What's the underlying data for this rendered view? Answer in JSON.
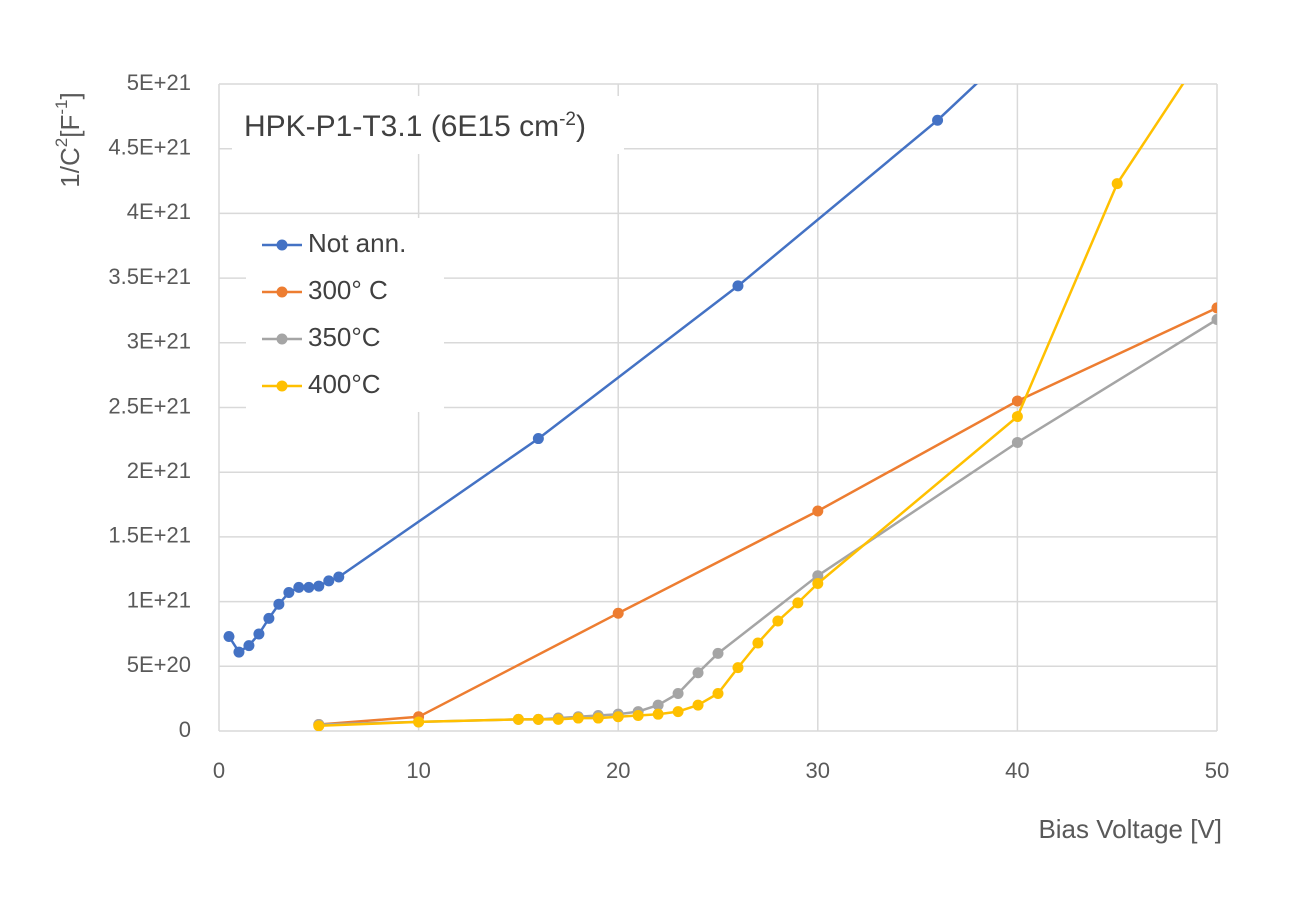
{
  "chart_data": {
    "type": "line",
    "title": {
      "main": "HPK-P1-T3.1 (6E15 cm",
      "sup": "-2",
      "tail": ")"
    },
    "xlabel": "Bias Voltage [V]",
    "ylabel": {
      "a": "1/C",
      "sup1": "2",
      "b": "[F",
      "sup2": "-1",
      "c": "]"
    },
    "xlim": [
      0,
      50
    ],
    "ylim": [
      0,
      5e+21
    ],
    "x_ticks": [
      0,
      10,
      20,
      30,
      40,
      50
    ],
    "x_tick_labels": [
      "0",
      "10",
      "20",
      "30",
      "40",
      "50"
    ],
    "y_ticks": [
      0,
      5e+20,
      1e+21,
      1.5e+21,
      2e+21,
      2.5e+21,
      3e+21,
      3.5e+21,
      4e+21,
      4.5e+21,
      5e+21
    ],
    "y_tick_labels": [
      "0",
      "5E+20",
      "1E+21",
      "1.5E+21",
      "2E+21",
      "2.5E+21",
      "3E+21",
      "3.5E+21",
      "4E+21",
      "4.5E+21",
      "5E+21"
    ],
    "grid": true,
    "legend_position": "left",
    "series": [
      {
        "name": "Not ann.",
        "color": "#4472c4",
        "points": [
          [
            0.5,
            7.3e+20
          ],
          [
            1,
            6.1e+20
          ],
          [
            1.5,
            6.6e+20
          ],
          [
            2,
            7.5e+20
          ],
          [
            2.5,
            8.7e+20
          ],
          [
            3,
            9.8e+20
          ],
          [
            3.5,
            1.07e+21
          ],
          [
            4,
            1.11e+21
          ],
          [
            4.5,
            1.11e+21
          ],
          [
            5,
            1.12e+21
          ],
          [
            5.5,
            1.16e+21
          ],
          [
            6,
            1.19e+21
          ],
          [
            16,
            2.26e+21
          ],
          [
            26,
            3.44e+21
          ],
          [
            36,
            4.72e+21
          ],
          [
            40,
            5.3e+21
          ]
        ]
      },
      {
        "name": "300° C",
        "color": "#ed7d31",
        "points": [
          [
            5,
            5e+19
          ],
          [
            10,
            1.1e+20
          ],
          [
            20,
            9.1e+20
          ],
          [
            30,
            1.7e+21
          ],
          [
            40,
            2.55e+21
          ],
          [
            50,
            3.27e+21
          ]
        ]
      },
      {
        "name": "350°C",
        "color": "#a5a5a5",
        "points": [
          [
            5,
            5e+19
          ],
          [
            10,
            7e+19
          ],
          [
            15,
            9e+19
          ],
          [
            16,
            9e+19
          ],
          [
            17,
            1e+20
          ],
          [
            18,
            1.1e+20
          ],
          [
            19,
            1.2e+20
          ],
          [
            20,
            1.3e+20
          ],
          [
            21,
            1.5e+20
          ],
          [
            22,
            2e+20
          ],
          [
            23,
            2.9e+20
          ],
          [
            24,
            4.5e+20
          ],
          [
            25,
            6e+20
          ],
          [
            30,
            1.2e+21
          ],
          [
            40,
            2.23e+21
          ],
          [
            50,
            3.18e+21
          ]
        ]
      },
      {
        "name": "400°C",
        "color": "#ffc000",
        "points": [
          [
            5,
            4e+19
          ],
          [
            10,
            7e+19
          ],
          [
            15,
            9e+19
          ],
          [
            16,
            9e+19
          ],
          [
            17,
            9e+19
          ],
          [
            18,
            1e+20
          ],
          [
            19,
            1e+20
          ],
          [
            20,
            1.1e+20
          ],
          [
            21,
            1.2e+20
          ],
          [
            22,
            1.3e+20
          ],
          [
            23,
            1.5e+20
          ],
          [
            24,
            2e+20
          ],
          [
            25,
            2.9e+20
          ],
          [
            26,
            4.9e+20
          ],
          [
            27,
            6.8e+20
          ],
          [
            28,
            8.5e+20
          ],
          [
            29,
            9.9e+20
          ],
          [
            30,
            1.14e+21
          ],
          [
            40,
            2.43e+21
          ],
          [
            45,
            4.23e+21
          ],
          [
            50,
            5.4e+21
          ]
        ]
      }
    ]
  }
}
